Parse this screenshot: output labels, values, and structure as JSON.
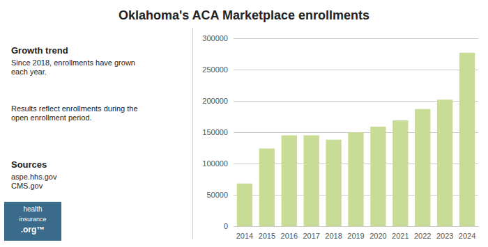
{
  "chart_data": {
    "type": "bar",
    "title": "Oklahoma's ACA Marketplace enrollments",
    "categories": [
      "2014",
      "2015",
      "2016",
      "2017",
      "2018",
      "2019",
      "2020",
      "2021",
      "2022",
      "2023",
      "2024"
    ],
    "values": [
      68000,
      124000,
      145000,
      145000,
      138000,
      150000,
      159000,
      169000,
      187000,
      202000,
      277000
    ],
    "color": "#c8dc96",
    "ylim": [
      0,
      300000
    ],
    "yticks": [
      0,
      50000,
      100000,
      150000,
      200000,
      250000,
      300000
    ],
    "grid": true,
    "annotations": [
      {
        "heading": "Growth trend",
        "text": [
          "Since 2018, enrollments have grown",
          "each year."
        ]
      },
      {
        "text": [
          "Results reflect enrollments during the",
          "open enrollment period."
        ]
      },
      {
        "heading": "Sources",
        "text": [
          "aspe.hhs.gov",
          "CMS.gov"
        ]
      },
      {
        "text": [
          "health",
          "insurance",
          ".org™"
        ]
      }
    ]
  }
}
